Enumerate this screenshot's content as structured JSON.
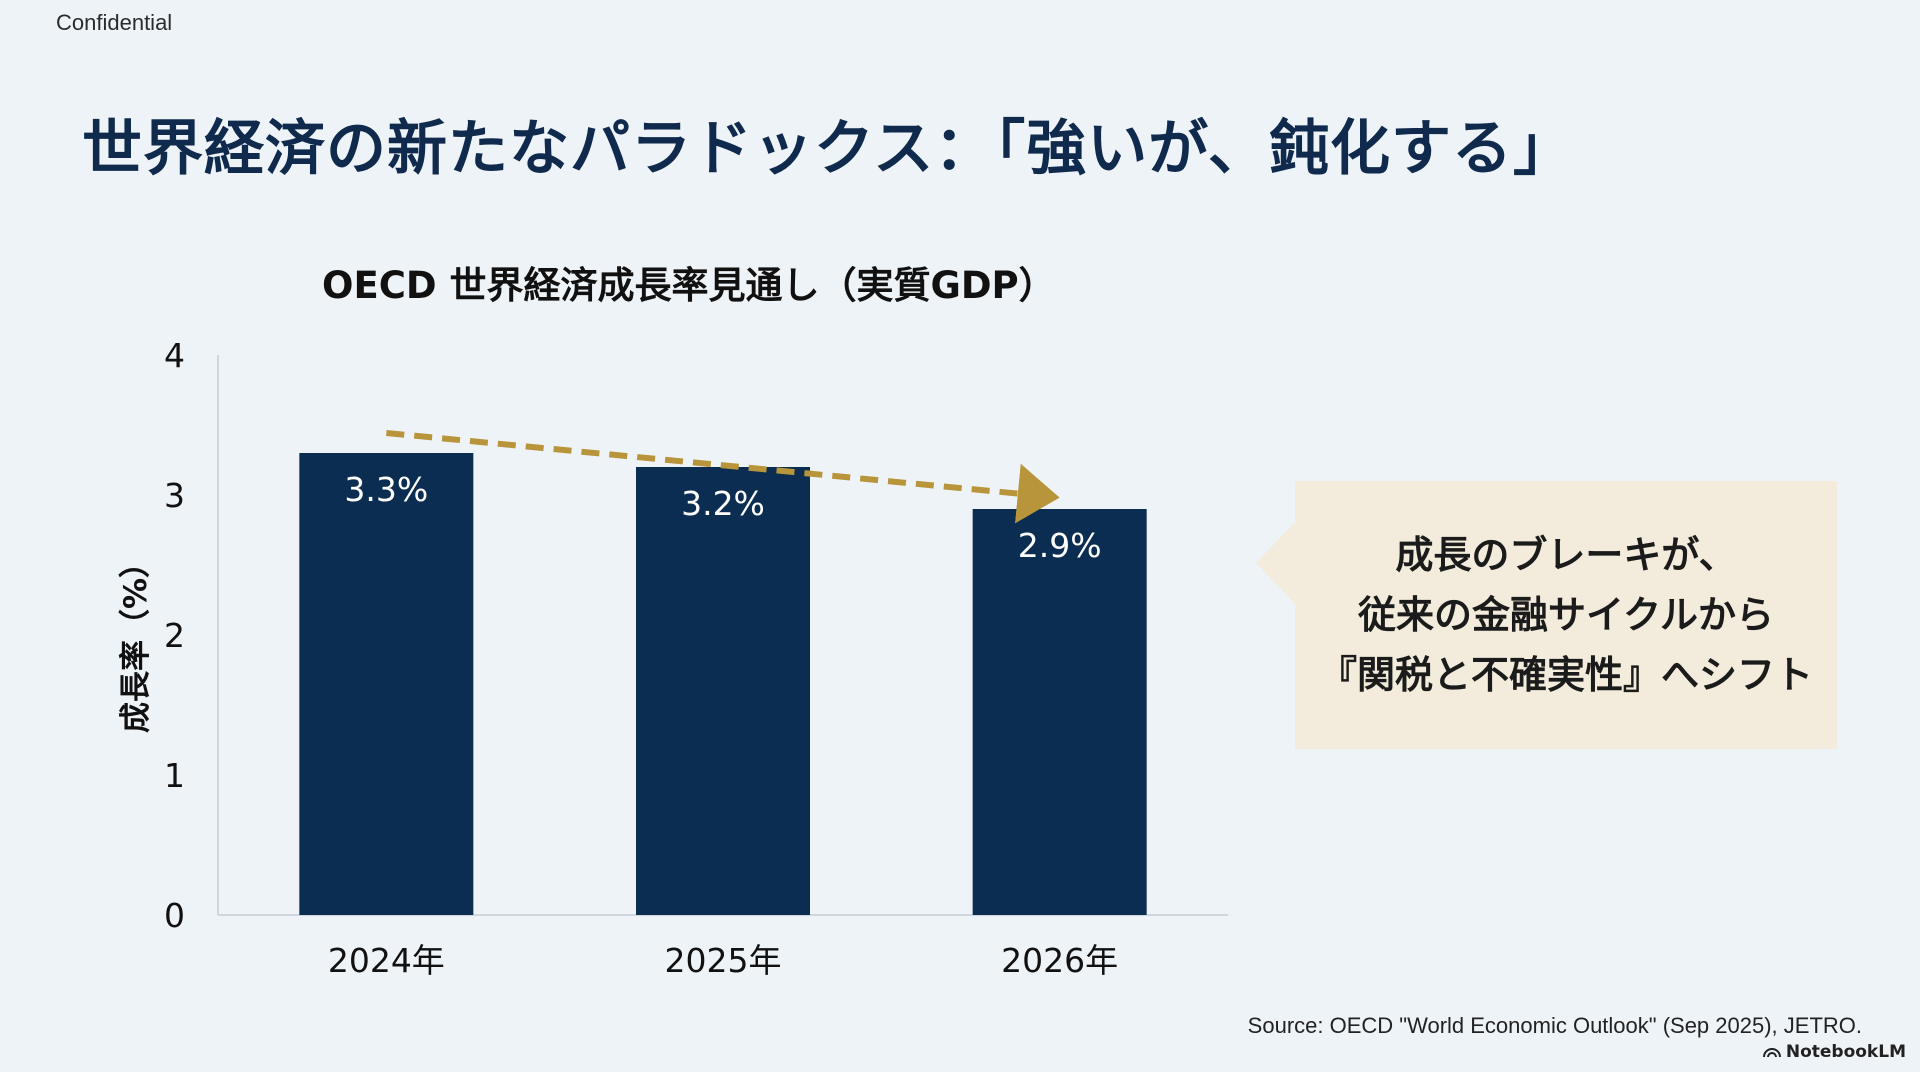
{
  "header": {
    "confidential_label": "Confidential",
    "title": "世界経済の新たなパラドックス：「強いが、鈍化する」"
  },
  "chart_data": {
    "type": "bar",
    "title": "OECD 世界経済成長率見通し（実質GDP）",
    "xlabel": "",
    "ylabel": "成長率（%）",
    "categories": [
      "2024年",
      "2025年",
      "2026年"
    ],
    "values": [
      3.3,
      3.2,
      2.9
    ],
    "data_labels": [
      "3.3%",
      "3.2%",
      "2.9%"
    ],
    "yticks": [
      "0",
      "1",
      "2",
      "3",
      "4"
    ],
    "ylim": [
      0,
      4
    ],
    "grid": false,
    "trend_arrow": true,
    "bar_color": "#0b2d52",
    "arrow_color": "#b8943a"
  },
  "callout": {
    "lines": [
      "成長のブレーキが、",
      "従来の金融サイクルから",
      "『関税と不確実性』へシフト"
    ]
  },
  "footer": {
    "source": "Source: OECD \"World Economic Outlook\" (Sep 2025), JETRO.",
    "brand": "NotebookLM"
  }
}
